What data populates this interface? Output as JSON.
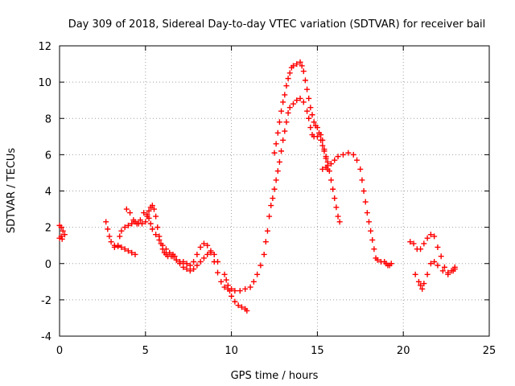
{
  "chart_data": {
    "type": "scatter",
    "title": "Day 309 of 2018, Sidereal Day-to-day VTEC variation (SDTVAR) for receiver bail",
    "xlabel": "GPS time / hours",
    "ylabel": "SDTVAR / TECUs",
    "xlim": [
      0,
      25
    ],
    "ylim": [
      -4,
      12
    ],
    "xticks": [
      0,
      5,
      10,
      15,
      20,
      25
    ],
    "yticks": [
      -4,
      -2,
      0,
      2,
      4,
      6,
      8,
      10,
      12
    ],
    "grid": true,
    "marker": "+",
    "color": "#ff0000",
    "series": [
      {
        "name": "segment-1",
        "points": [
          [
            0.0,
            2.1
          ],
          [
            0.1,
            2.0
          ],
          [
            0.2,
            1.8
          ],
          [
            0.3,
            1.6
          ],
          [
            0.1,
            1.5
          ],
          [
            0.0,
            1.4
          ],
          [
            0.15,
            1.35
          ]
        ]
      },
      {
        "name": "segment-2a",
        "points": [
          [
            2.7,
            2.3
          ],
          [
            2.8,
            1.9
          ],
          [
            2.9,
            1.5
          ],
          [
            3.0,
            1.2
          ],
          [
            3.2,
            1.0
          ],
          [
            3.4,
            0.95
          ],
          [
            3.6,
            0.9
          ],
          [
            3.8,
            0.8
          ],
          [
            4.0,
            0.7
          ],
          [
            4.2,
            0.6
          ],
          [
            4.4,
            0.5
          ]
        ]
      },
      {
        "name": "segment-2b",
        "points": [
          [
            3.2,
            0.9
          ],
          [
            3.4,
            1.0
          ],
          [
            3.5,
            1.5
          ],
          [
            3.6,
            1.8
          ],
          [
            3.8,
            2.0
          ],
          [
            4.0,
            2.1
          ],
          [
            4.2,
            2.2
          ],
          [
            4.4,
            2.3
          ],
          [
            4.6,
            2.2
          ],
          [
            4.8,
            2.2
          ],
          [
            5.0,
            2.3
          ],
          [
            5.1,
            2.6
          ],
          [
            5.2,
            2.9
          ],
          [
            5.3,
            3.1
          ],
          [
            5.4,
            3.2
          ],
          [
            5.5,
            3.0
          ],
          [
            5.6,
            2.6
          ],
          [
            5.7,
            2.0
          ],
          [
            5.8,
            1.5
          ],
          [
            5.9,
            1.1
          ],
          [
            6.0,
            0.8
          ],
          [
            6.1,
            0.6
          ],
          [
            6.2,
            0.5
          ],
          [
            6.3,
            0.4
          ],
          [
            6.5,
            0.4
          ],
          [
            6.6,
            0.5
          ],
          [
            6.7,
            0.4
          ],
          [
            6.8,
            0.2
          ],
          [
            7.0,
            0.1
          ],
          [
            7.2,
            0.1
          ],
          [
            7.4,
            0.0
          ],
          [
            7.6,
            -0.1
          ],
          [
            7.8,
            0.1
          ],
          [
            8.0,
            0.5
          ],
          [
            8.2,
            0.9
          ],
          [
            8.4,
            1.1
          ],
          [
            8.6,
            1.0
          ],
          [
            8.8,
            0.6
          ],
          [
            9.0,
            0.1
          ],
          [
            9.2,
            -0.5
          ],
          [
            9.4,
            -1.0
          ],
          [
            9.6,
            -1.3
          ],
          [
            9.8,
            -1.4
          ],
          [
            10.0,
            -1.4
          ],
          [
            10.2,
            -1.5
          ],
          [
            10.5,
            -1.5
          ],
          [
            10.8,
            -1.4
          ],
          [
            11.1,
            -1.3
          ],
          [
            11.3,
            -1.0
          ],
          [
            11.5,
            -0.6
          ],
          [
            11.7,
            -0.1
          ],
          [
            11.9,
            0.5
          ],
          [
            12.0,
            1.2
          ],
          [
            12.1,
            1.8
          ],
          [
            12.2,
            2.6
          ],
          [
            12.3,
            3.2
          ],
          [
            12.4,
            3.6
          ],
          [
            12.5,
            4.1
          ],
          [
            12.6,
            4.6
          ],
          [
            12.7,
            5.1
          ],
          [
            12.8,
            5.6
          ],
          [
            12.9,
            6.2
          ],
          [
            13.0,
            6.8
          ],
          [
            13.1,
            7.3
          ],
          [
            13.2,
            7.8
          ],
          [
            13.3,
            8.3
          ],
          [
            13.4,
            8.6
          ],
          [
            13.6,
            8.8
          ],
          [
            13.8,
            9.0
          ],
          [
            14.0,
            9.1
          ],
          [
            14.2,
            8.9
          ],
          [
            14.4,
            8.4
          ],
          [
            14.5,
            8.0
          ],
          [
            14.6,
            7.5
          ],
          [
            14.7,
            7.1
          ],
          [
            14.8,
            7.0
          ],
          [
            15.0,
            7.0
          ],
          [
            15.2,
            7.1
          ],
          [
            15.3,
            6.8
          ],
          [
            15.4,
            6.3
          ],
          [
            15.5,
            5.8
          ],
          [
            15.6,
            5.4
          ],
          [
            15.7,
            5.1
          ],
          [
            15.8,
            4.6
          ],
          [
            15.9,
            4.1
          ],
          [
            16.0,
            3.6
          ],
          [
            16.1,
            3.1
          ],
          [
            16.2,
            2.6
          ],
          [
            16.3,
            2.3
          ]
        ]
      },
      {
        "name": "segment-2c",
        "points": [
          [
            3.9,
            3.0
          ],
          [
            4.1,
            2.8
          ],
          [
            4.3,
            2.4
          ],
          [
            4.5,
            2.2
          ],
          [
            4.7,
            2.4
          ],
          [
            4.9,
            2.8
          ],
          [
            5.1,
            2.7
          ],
          [
            5.2,
            2.5
          ],
          [
            5.3,
            2.2
          ],
          [
            5.4,
            1.9
          ],
          [
            5.6,
            1.6
          ],
          [
            5.8,
            1.3
          ],
          [
            6.0,
            1.0
          ],
          [
            6.2,
            0.8
          ],
          [
            6.4,
            0.6
          ],
          [
            6.6,
            0.4
          ],
          [
            6.8,
            0.2
          ],
          [
            7.0,
            0.0
          ],
          [
            7.2,
            -0.2
          ],
          [
            7.4,
            -0.3
          ],
          [
            7.6,
            -0.4
          ],
          [
            7.8,
            -0.3
          ],
          [
            8.0,
            -0.1
          ],
          [
            8.2,
            0.1
          ],
          [
            8.4,
            0.3
          ],
          [
            8.6,
            0.5
          ],
          [
            8.8,
            0.7
          ],
          [
            9.0,
            0.5
          ],
          [
            9.2,
            0.1
          ]
        ]
      },
      {
        "name": "segment-2d",
        "points": [
          [
            9.6,
            -0.6
          ],
          [
            9.7,
            -0.9
          ],
          [
            9.8,
            -1.2
          ],
          [
            9.9,
            -1.5
          ],
          [
            10.0,
            -1.8
          ],
          [
            10.2,
            -2.1
          ],
          [
            10.4,
            -2.3
          ],
          [
            10.6,
            -2.4
          ],
          [
            10.8,
            -2.5
          ],
          [
            10.9,
            -2.6
          ]
        ]
      },
      {
        "name": "segment-3",
        "points": [
          [
            12.5,
            6.1
          ],
          [
            12.6,
            6.6
          ],
          [
            12.7,
            7.2
          ],
          [
            12.8,
            7.8
          ],
          [
            12.9,
            8.4
          ],
          [
            13.0,
            8.9
          ],
          [
            13.1,
            9.3
          ],
          [
            13.2,
            9.8
          ],
          [
            13.3,
            10.2
          ],
          [
            13.4,
            10.5
          ],
          [
            13.5,
            10.8
          ],
          [
            13.6,
            10.9
          ],
          [
            13.8,
            11.0
          ],
          [
            14.0,
            11.1
          ],
          [
            14.1,
            10.9
          ],
          [
            14.2,
            10.6
          ],
          [
            14.3,
            10.1
          ],
          [
            14.4,
            9.6
          ],
          [
            14.5,
            9.1
          ],
          [
            14.6,
            8.6
          ],
          [
            14.7,
            8.2
          ],
          [
            14.8,
            7.8
          ],
          [
            14.9,
            7.6
          ],
          [
            15.0,
            7.5
          ],
          [
            15.1,
            7.2
          ],
          [
            15.2,
            6.8
          ],
          [
            15.3,
            6.5
          ],
          [
            15.4,
            6.2
          ],
          [
            15.5,
            5.9
          ],
          [
            15.6,
            5.6
          ],
          [
            15.5,
            5.3
          ],
          [
            15.3,
            5.2
          ],
          [
            15.6,
            5.2
          ],
          [
            15.8,
            5.5
          ],
          [
            16.0,
            5.7
          ],
          [
            16.2,
            5.9
          ],
          [
            16.5,
            6.0
          ],
          [
            16.8,
            6.1
          ],
          [
            17.1,
            6.0
          ],
          [
            17.3,
            5.7
          ],
          [
            17.5,
            5.2
          ],
          [
            17.6,
            4.6
          ],
          [
            17.7,
            4.0
          ],
          [
            17.8,
            3.4
          ],
          [
            17.9,
            2.8
          ],
          [
            18.0,
            2.3
          ],
          [
            18.1,
            1.8
          ],
          [
            18.2,
            1.3
          ],
          [
            18.3,
            0.8
          ],
          [
            18.4,
            0.3
          ],
          [
            18.5,
            0.2
          ],
          [
            18.7,
            0.1
          ],
          [
            18.9,
            0.1
          ],
          [
            19.0,
            0.0
          ],
          [
            19.1,
            -0.1
          ],
          [
            19.2,
            -0.1
          ],
          [
            19.3,
            0.0
          ]
        ]
      },
      {
        "name": "segment-4",
        "points": [
          [
            20.4,
            1.2
          ],
          [
            20.6,
            1.1
          ],
          [
            20.8,
            0.8
          ],
          [
            21.0,
            0.8
          ],
          [
            21.2,
            1.1
          ],
          [
            21.4,
            1.4
          ],
          [
            21.6,
            1.6
          ],
          [
            21.8,
            1.5
          ],
          [
            22.0,
            0.9
          ],
          [
            22.2,
            0.4
          ],
          [
            22.4,
            -0.2
          ],
          [
            22.6,
            -0.5
          ],
          [
            22.8,
            -0.4
          ],
          [
            23.0,
            -0.2
          ],
          [
            20.7,
            -0.6
          ],
          [
            20.9,
            -1.0
          ],
          [
            21.0,
            -1.2
          ],
          [
            21.1,
            -1.4
          ],
          [
            21.2,
            -1.1
          ],
          [
            21.4,
            -0.6
          ],
          [
            21.6,
            0.0
          ],
          [
            21.8,
            0.1
          ],
          [
            22.0,
            -0.1
          ],
          [
            22.3,
            -0.4
          ],
          [
            22.6,
            -0.6
          ],
          [
            22.9,
            -0.4
          ],
          [
            23.0,
            -0.3
          ]
        ]
      }
    ]
  }
}
